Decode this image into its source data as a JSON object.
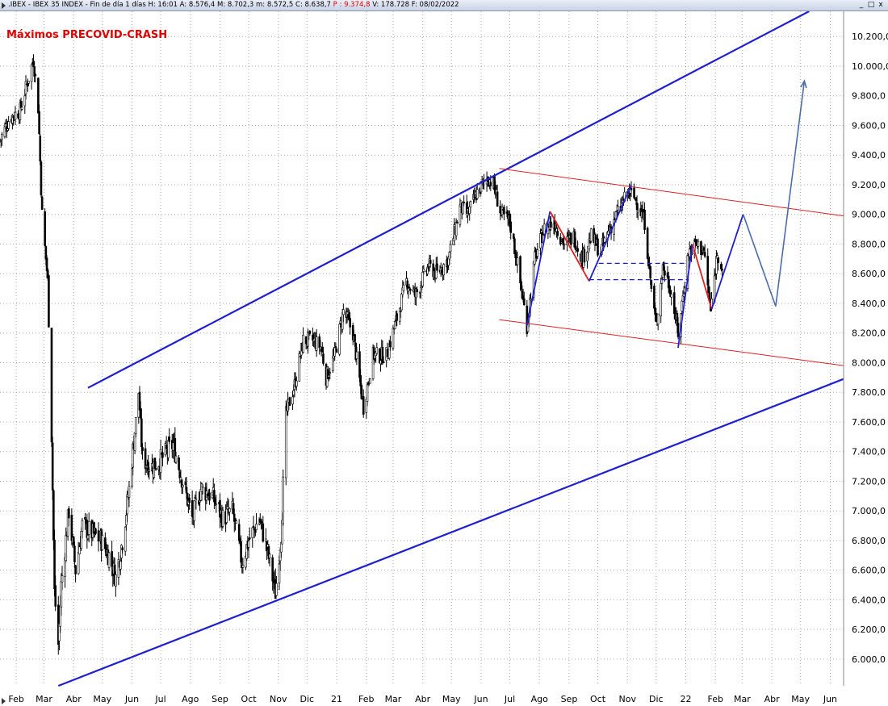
{
  "window": {
    "info_main": ".IBEX - IBEX 35 INDEX - Fin de día 1 días  H: 16:01  A: 8.576,4  M: 8.702,3  m: 8.572,5  C: 8.638,7",
    "info_p": "P : 9.374,8",
    "info_tail": "V: 178.728  F: 08/02/2022",
    "buttons": [
      "_",
      "□",
      "x"
    ]
  },
  "chart_data": {
    "type": "candlestick",
    "title": "Máximos PRECOVID-CRASH",
    "ylim": [
      5820,
      10370
    ],
    "y_ticks": [
      "6.000,0",
      "6.200,0",
      "6.400,0",
      "6.600,0",
      "6.800,0",
      "7.000,0",
      "7.200,0",
      "7.400,0",
      "7.600,0",
      "7.800,0",
      "8.000,0",
      "8.200,0",
      "8.400,0",
      "8.600,0",
      "8.800,0",
      "9.000,0",
      "9.200,0",
      "9.400,0",
      "9.600,0",
      "9.800,0",
      "10.000,0",
      "10.200,0"
    ],
    "y_tick_values": [
      6000,
      6200,
      6400,
      6600,
      6800,
      7000,
      7200,
      7400,
      7600,
      7800,
      8000,
      8200,
      8400,
      8600,
      8800,
      9000,
      9200,
      9400,
      9600,
      9800,
      10000,
      10200
    ],
    "x_labels": [
      "Feb",
      "Mar",
      "Abr",
      "May",
      "Jun",
      "Jul",
      "Ago",
      "Sep",
      "Oct",
      "Nov",
      "Dic",
      "21",
      "Feb",
      "Mar",
      "Abr",
      "May",
      "Jun",
      "Jul",
      "Ago",
      "Sep",
      "Oct",
      "Nov",
      "Dic",
      "22",
      "Feb",
      "Mar",
      "Abr",
      "May",
      "Jun"
    ],
    "x_range": [
      "2020-01-15",
      "2022-06-15"
    ],
    "price_path": [
      [
        "2020-01-15",
        9500
      ],
      [
        "2020-01-25",
        9650
      ],
      [
        "2020-02-05",
        9700
      ],
      [
        "2020-02-19",
        10050
      ],
      [
        "2020-02-24",
        9720
      ],
      [
        "2020-02-28",
        9000
      ],
      [
        "2020-03-05",
        8550
      ],
      [
        "2020-03-09",
        7500
      ],
      [
        "2020-03-12",
        6450
      ],
      [
        "2020-03-16",
        6100
      ],
      [
        "2020-03-19",
        6500
      ],
      [
        "2020-03-27",
        7000
      ],
      [
        "2020-04-03",
        6600
      ],
      [
        "2020-04-10",
        6900
      ],
      [
        "2020-04-20",
        6850
      ],
      [
        "2020-04-30",
        6800
      ],
      [
        "2020-05-08",
        6700
      ],
      [
        "2020-05-15",
        6550
      ],
      [
        "2020-05-22",
        6800
      ],
      [
        "2020-05-29",
        7150
      ],
      [
        "2020-06-08",
        7800
      ],
      [
        "2020-06-12",
        7350
      ],
      [
        "2020-06-22",
        7300
      ],
      [
        "2020-07-02",
        7350
      ],
      [
        "2020-07-14",
        7450
      ],
      [
        "2020-07-24",
        7200
      ],
      [
        "2020-08-03",
        6950
      ],
      [
        "2020-08-12",
        7150
      ],
      [
        "2020-08-24",
        7100
      ],
      [
        "2020-09-04",
        6950
      ],
      [
        "2020-09-14",
        7000
      ],
      [
        "2020-09-24",
        6650
      ],
      [
        "2020-10-01",
        6800
      ],
      [
        "2020-10-12",
        6950
      ],
      [
        "2020-10-20",
        6750
      ],
      [
        "2020-10-29",
        6450
      ],
      [
        "2020-11-04",
        6850
      ],
      [
        "2020-11-09",
        7650
      ],
      [
        "2020-11-18",
        7850
      ],
      [
        "2020-11-27",
        8150
      ],
      [
        "2020-12-07",
        8150
      ],
      [
        "2020-12-16",
        8100
      ],
      [
        "2020-12-21",
        7900
      ],
      [
        "2020-12-30",
        8050
      ],
      [
        "2021-01-08",
        8350
      ],
      [
        "2021-01-18",
        8200
      ],
      [
        "2021-01-29",
        7700
      ],
      [
        "2021-02-08",
        8050
      ],
      [
        "2021-02-22",
        8050
      ],
      [
        "2021-03-05",
        8300
      ],
      [
        "2021-03-15",
        8550
      ],
      [
        "2021-03-24",
        8450
      ],
      [
        "2021-04-07",
        8650
      ],
      [
        "2021-04-16",
        8600
      ],
      [
        "2021-04-28",
        8700
      ],
      [
        "2021-05-10",
        9050
      ],
      [
        "2021-05-18",
        9000
      ],
      [
        "2021-05-28",
        9150
      ],
      [
        "2021-06-08",
        9250
      ],
      [
        "2021-06-14",
        9200
      ],
      [
        "2021-06-22",
        9000
      ],
      [
        "2021-07-01",
        8950
      ],
      [
        "2021-07-08",
        8700
      ],
      [
        "2021-07-19",
        8250
      ],
      [
        "2021-07-27",
        8700
      ],
      [
        "2021-08-06",
        8900
      ],
      [
        "2021-08-16",
        8950
      ],
      [
        "2021-08-27",
        8800
      ],
      [
        "2021-09-06",
        8850
      ],
      [
        "2021-09-15",
        8700
      ],
      [
        "2021-09-24",
        8850
      ],
      [
        "2021-10-04",
        8750
      ],
      [
        "2021-10-13",
        8900
      ],
      [
        "2021-10-25",
        9050
      ],
      [
        "2021-11-02",
        9150
      ],
      [
        "2021-11-10",
        9100
      ],
      [
        "2021-11-19",
        8950
      ],
      [
        "2021-11-26",
        8500
      ],
      [
        "2021-12-01",
        8250
      ],
      [
        "2021-12-08",
        8650
      ],
      [
        "2021-12-16",
        8500
      ],
      [
        "2021-12-24",
        8200
      ],
      [
        "2022-01-04",
        8750
      ],
      [
        "2022-01-12",
        8800
      ],
      [
        "2022-01-20",
        8750
      ],
      [
        "2022-01-27",
        8350
      ],
      [
        "2022-02-03",
        8750
      ],
      [
        "2022-02-08",
        8639
      ]
    ],
    "overlays": [
      {
        "kind": "upper_channel_line",
        "color": "#1f1fd0",
        "points": [
          [
            "2020-04-16",
            7830
          ],
          [
            "2022-05-10",
            10370
          ]
        ]
      },
      {
        "kind": "lower_channel_line",
        "color": "#1f1fd0",
        "points": [
          [
            "2020-03-16",
            5820
          ],
          [
            "2022-06-15",
            7890
          ]
        ]
      },
      {
        "kind": "upper_red_line",
        "color": "#e02020",
        "points": [
          [
            "2021-06-20",
            9310
          ],
          [
            "2022-06-15",
            8990
          ]
        ]
      },
      {
        "kind": "lower_red_line",
        "color": "#e02020",
        "points": [
          [
            "2021-06-20",
            8290
          ],
          [
            "2022-06-15",
            7980
          ]
        ]
      },
      {
        "kind": "blue_leg",
        "color": "#1f1fd0",
        "points": [
          [
            "2021-07-19",
            8250
          ],
          [
            "2021-08-12",
            9020
          ]
        ]
      },
      {
        "kind": "red_leg",
        "color": "#e02020",
        "points": [
          [
            "2021-08-12",
            9020
          ],
          [
            "2021-09-22",
            8550
          ]
        ]
      },
      {
        "kind": "blue_leg",
        "color": "#1f1fd0",
        "points": [
          [
            "2021-09-22",
            8550
          ],
          [
            "2021-11-05",
            9200
          ]
        ]
      },
      {
        "kind": "blue_leg",
        "color": "#1f1fd0",
        "points": [
          [
            "2021-12-24",
            8100
          ],
          [
            "2022-01-08",
            8800
          ]
        ]
      },
      {
        "kind": "red_leg",
        "color": "#e02020",
        "points": [
          [
            "2022-01-08",
            8800
          ],
          [
            "2022-01-28",
            8360
          ]
        ]
      },
      {
        "kind": "blue_leg",
        "color": "#1f1fd0",
        "points": [
          [
            "2022-01-28",
            8360
          ],
          [
            "2022-03-02",
            9000
          ]
        ]
      },
      {
        "kind": "dashed_neckline",
        "color": "#1f1fd0",
        "points": [
          [
            "2021-10-02",
            8670
          ],
          [
            "2022-01-02",
            8670
          ]
        ]
      },
      {
        "kind": "dashed_neckline",
        "color": "#1f1fd0",
        "points": [
          [
            "2021-09-22",
            8560
          ],
          [
            "2022-01-02",
            8560
          ]
        ]
      },
      {
        "kind": "projection",
        "color": "#4a6ea8",
        "points": [
          [
            "2022-03-02",
            9000
          ],
          [
            "2022-04-05",
            8380
          ],
          [
            "2022-05-05",
            9900
          ]
        ]
      }
    ]
  }
}
